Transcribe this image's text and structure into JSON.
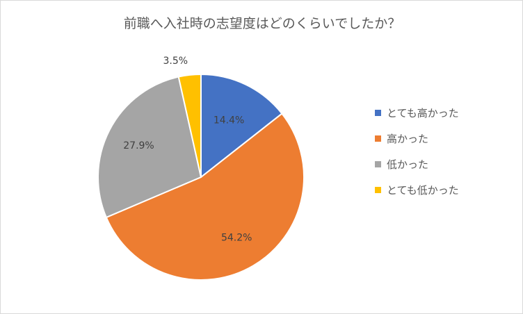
{
  "chart_data": {
    "type": "pie",
    "title": "前職へ入社時の志望度はどのくらいでしたか？",
    "categories": [
      "とても高かった",
      "高かった",
      "低かった",
      "とても低かった"
    ],
    "values": [
      14.4,
      54.2,
      27.9,
      3.5
    ],
    "data_labels": [
      "14.4%",
      "54.2%",
      "27.9%",
      "3.5%"
    ],
    "colors": [
      "#4472c4",
      "#ed7d31",
      "#a5a5a5",
      "#ffc000"
    ],
    "legend_position": "right"
  }
}
